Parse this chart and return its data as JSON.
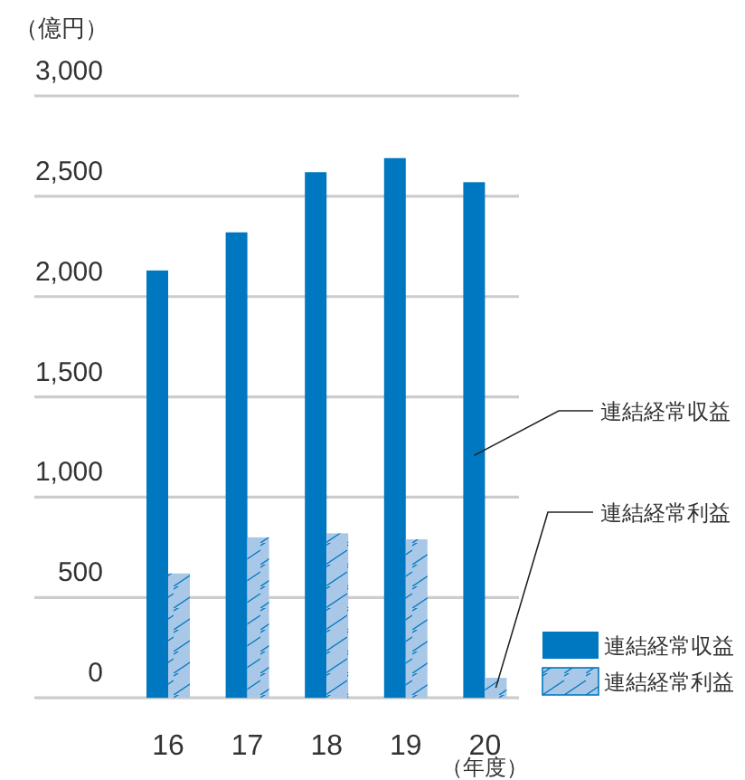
{
  "chart_data": {
    "type": "bar",
    "ylabel": "（億円）",
    "xlabel": "（年度）",
    "categories": [
      "16",
      "17",
      "18",
      "19",
      "20"
    ],
    "series": [
      {
        "name": "連結経常収益",
        "color": "#0078c1",
        "values": [
          2130,
          2320,
          2620,
          2690,
          2570
        ]
      },
      {
        "name": "連結経常利益",
        "color": "#a9c8e8",
        "values": [
          620,
          800,
          820,
          790,
          100
        ]
      }
    ],
    "ylim": [
      0,
      3000
    ],
    "yticks": [
      {
        "value": 0,
        "label": "0"
      },
      {
        "value": 500,
        "label": "500"
      },
      {
        "value": 1000,
        "label": "1,000"
      },
      {
        "value": 1500,
        "label": "1,500"
      },
      {
        "value": 2000,
        "label": "2,000"
      },
      {
        "value": 2500,
        "label": "2,500"
      },
      {
        "value": 3000,
        "label": "3,000"
      }
    ],
    "grid": "y",
    "legend": "bottom right",
    "annotations": [
      "連結経常収益",
      "連結経常利益"
    ]
  }
}
